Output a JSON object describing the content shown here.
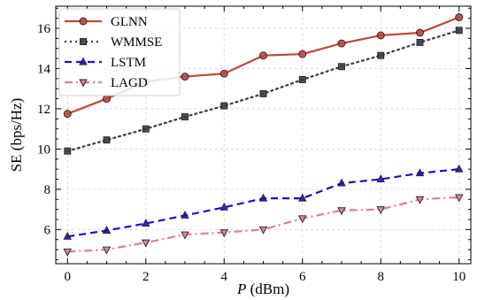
{
  "chart_data": {
    "type": "line",
    "title": "",
    "xlabel_var": "P",
    "xlabel_unit": " (dBm)",
    "ylabel": "SE (bps/Hz)",
    "x": [
      0,
      1,
      2,
      3,
      4,
      5,
      6,
      7,
      8,
      9,
      10
    ],
    "xlim": [
      -0.3,
      10.3
    ],
    "ylim": [
      4.3,
      17.1
    ],
    "xticks": [
      0,
      2,
      4,
      6,
      8,
      10
    ],
    "yticks": [
      6,
      8,
      10,
      12,
      14,
      16
    ],
    "grid": true,
    "legend_position": "top-left",
    "series": [
      {
        "name": "GLNN",
        "color": "#c0473a",
        "dash": "",
        "marker": "circle",
        "values": [
          11.75,
          12.5,
          13.35,
          13.6,
          13.75,
          14.65,
          14.72,
          15.25,
          15.65,
          15.78,
          16.55
        ]
      },
      {
        "name": "WMMSE",
        "color": "#3a3a4a",
        "dash": "2,4",
        "marker": "square",
        "values": [
          9.9,
          10.45,
          11.0,
          11.6,
          12.15,
          12.75,
          13.45,
          14.1,
          14.65,
          15.3,
          15.9
        ]
      },
      {
        "name": "LSTM",
        "color": "#1414c8",
        "dash": "8,5",
        "marker": "triangle-up",
        "values": [
          5.65,
          5.95,
          6.3,
          6.7,
          7.1,
          7.55,
          7.55,
          8.3,
          8.5,
          8.8,
          9.0
        ]
      },
      {
        "name": "LAGD",
        "color": "#e27a9b",
        "dash": "9,4,2,4",
        "marker": "triangle-down",
        "values": [
          4.9,
          5.0,
          5.35,
          5.75,
          5.85,
          6.0,
          6.55,
          6.95,
          7.0,
          7.5,
          7.6
        ]
      }
    ]
  }
}
